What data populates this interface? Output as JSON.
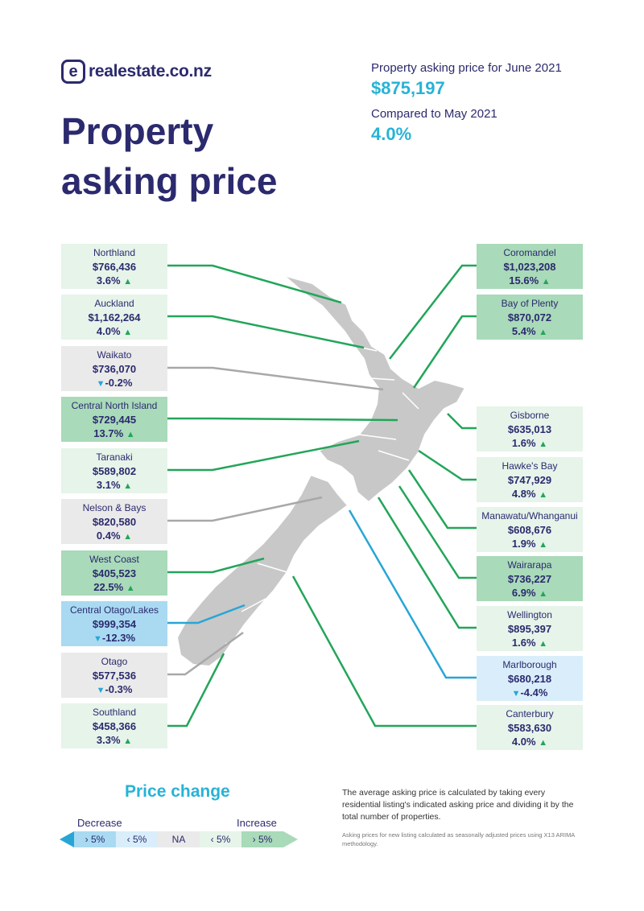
{
  "brand": {
    "logo_letter": "e",
    "name": "realestate.co.nz"
  },
  "title": {
    "line1": "Property",
    "line2": "asking price"
  },
  "summary": {
    "label1": "Property asking price for June 2021",
    "value1": "$875,197",
    "label2": "Compared to May 2021",
    "value2": "4.0%"
  },
  "regions": {
    "northland": {
      "name": "Northland",
      "price": "$766,436",
      "change": "3.6%",
      "direction": "up"
    },
    "auckland": {
      "name": "Auckland",
      "price": "$1,162,264",
      "change": "4.0%",
      "direction": "up"
    },
    "waikato": {
      "name": "Waikato",
      "price": "$736,070",
      "change": "-0.2%",
      "direction": "down"
    },
    "central_north_island": {
      "name": "Central North Island",
      "price": "$729,445",
      "change": "13.7%",
      "direction": "up"
    },
    "taranaki": {
      "name": "Taranaki",
      "price": "$589,802",
      "change": "3.1%",
      "direction": "up"
    },
    "nelson_bays": {
      "name": "Nelson & Bays",
      "price": "$820,580",
      "change": "0.4%",
      "direction": "up"
    },
    "west_coast": {
      "name": "West Coast",
      "price": "$405,523",
      "change": "22.5%",
      "direction": "up"
    },
    "central_otago_lakes": {
      "name": "Central Otago/Lakes",
      "price": "$999,354",
      "change": "-12.3%",
      "direction": "down"
    },
    "otago": {
      "name": "Otago",
      "price": "$577,536",
      "change": "-0.3%",
      "direction": "down"
    },
    "southland": {
      "name": "Southland",
      "price": "$458,366",
      "change": "3.3%",
      "direction": "up"
    },
    "coromandel": {
      "name": "Coromandel",
      "price": "$1,023,208",
      "change": "15.6%",
      "direction": "up"
    },
    "bay_of_plenty": {
      "name": "Bay of Plenty",
      "price": "$870,072",
      "change": "5.4%",
      "direction": "up"
    },
    "gisborne": {
      "name": "Gisborne",
      "price": "$635,013",
      "change": "1.6%",
      "direction": "up"
    },
    "hawkes_bay": {
      "name": "Hawke's Bay",
      "price": "$747,929",
      "change": "4.8%",
      "direction": "up"
    },
    "manawatu_whanganui": {
      "name": "Manawatu/Whanganui",
      "price": "$608,676",
      "change": "1.9%",
      "direction": "up"
    },
    "wairarapa": {
      "name": "Wairarapa",
      "price": "$736,227",
      "change": "6.9%",
      "direction": "up"
    },
    "wellington": {
      "name": "Wellington",
      "price": "$895,397",
      "change": "1.6%",
      "direction": "up"
    },
    "marlborough": {
      "name": "Marlborough",
      "price": "$680,218",
      "change": "-4.4%",
      "direction": "down"
    },
    "canterbury": {
      "name": "Canterbury",
      "price": "$583,630",
      "change": "4.0%",
      "direction": "up"
    }
  },
  "icons": {
    "up": "triangle-up-icon",
    "down": "triangle-down-icon"
  },
  "legend": {
    "title": "Price change",
    "decrease_label": "Decrease",
    "increase_label": "Increase",
    "segments": [
      "› 5%",
      "‹ 5%",
      "NA",
      "‹ 5%",
      "› 5%"
    ],
    "colors": [
      "#a9daf2",
      "#d9eefa",
      "#eaeaea",
      "#e6f4ea",
      "#a9dab9"
    ]
  },
  "notes": {
    "main": "The average asking price is calculated by taking every residential listing's indicated asking price and dividing it by the total number of properties.",
    "small": "Asking prices for new listing calculated as seasonally adjusted prices using X13 ARIMA methodology."
  },
  "colors": {
    "navy": "#2b2a6e",
    "teal": "#27b3d6",
    "green": "#23a55a",
    "line_green": "#23a55a",
    "line_grey": "#a8a8a8",
    "line_blue": "#27a6d6",
    "map": "#c8c8c8"
  }
}
